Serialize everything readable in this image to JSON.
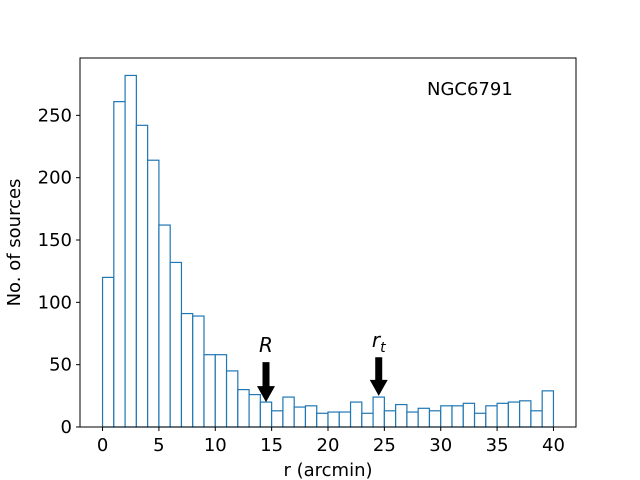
{
  "chart_data": {
    "type": "bar",
    "histogram": true,
    "title": "",
    "legend_text": "NGC6791",
    "legend_location": "top-right",
    "xlabel": "r (arcmin)",
    "ylabel": "No. of sources",
    "xlim": [
      -2,
      42
    ],
    "ylim": [
      0,
      296
    ],
    "xticks": [
      0,
      5,
      10,
      15,
      20,
      25,
      30,
      35,
      40
    ],
    "yticks": [
      0,
      50,
      100,
      150,
      200,
      250
    ],
    "bin_width": 1,
    "bin_edges_start": 0,
    "values": [
      120,
      261,
      282,
      242,
      214,
      162,
      132,
      91,
      89,
      58,
      58,
      45,
      30,
      26,
      20,
      13,
      24,
      16,
      17,
      11,
      12,
      12,
      20,
      11,
      24,
      13,
      18,
      12,
      15,
      13,
      17,
      17,
      19,
      11,
      17,
      19,
      20,
      21,
      13,
      29
    ],
    "bar_edge_color": "#1f77b4",
    "bar_fill_color": "#ffffff",
    "annotations": [
      {
        "label": "R",
        "subscript": "",
        "x": 14.5,
        "arrow_tip_y": 20,
        "arrow_base_y": 52
      },
      {
        "label": "r",
        "subscript": "t",
        "x": 24.5,
        "arrow_tip_y": 25,
        "arrow_base_y": 56
      }
    ]
  }
}
